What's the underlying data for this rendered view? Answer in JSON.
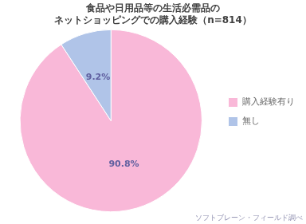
{
  "chart_data": {
    "type": "pie",
    "title": [
      "食品や日用品等の生活必需品の",
      "ネットショッピングでの購入経験（n=814）"
    ],
    "categories": [
      "購入経験有り",
      "無し"
    ],
    "values": [
      90.8,
      9.2
    ],
    "value_labels": [
      "90.8%",
      "9.2%"
    ],
    "data_labels": true,
    "colors": [
      "#f9b8d8",
      "#b0c4e8"
    ],
    "legend": "right",
    "annotations": [
      {
        "text": "ソフトブレーン・フィールド調べ"
      }
    ]
  }
}
